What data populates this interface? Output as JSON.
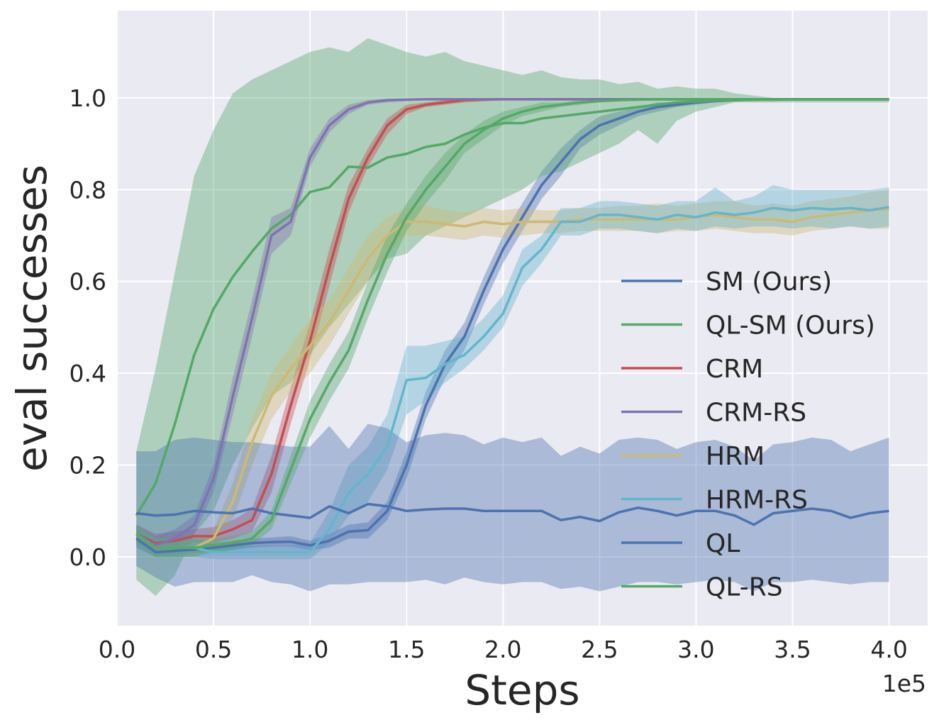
{
  "colors": {
    "background": "#eaeaf2",
    "grid": "#ffffff",
    "blue": "#4c72b0",
    "green": "#55a868",
    "red": "#c44e52",
    "purple": "#8172b2",
    "yellow": "#ccb974",
    "cyan": "#64b5cd"
  },
  "chart_data": {
    "type": "line",
    "title": "",
    "xlabel": "Steps",
    "ylabel": "eval successes",
    "x_offset_label": "1e5",
    "xlim": [
      0,
      4.2
    ],
    "ylim": [
      -0.15,
      1.19
    ],
    "x_ticks": [
      "0.0",
      "0.5",
      "1.0",
      "1.5",
      "2.0",
      "2.5",
      "3.0",
      "3.5",
      "4.0"
    ],
    "y_ticks": [
      "0.0",
      "0.2",
      "0.4",
      "0.6",
      "0.8",
      "1.0"
    ],
    "grid": true,
    "legend_position": "center-right",
    "x": [
      0.1,
      0.2,
      0.3,
      0.4,
      0.5,
      0.6,
      0.7,
      0.8,
      0.9,
      1.0,
      1.1,
      1.2,
      1.3,
      1.4,
      1.5,
      1.6,
      1.7,
      1.8,
      1.9,
      2.0,
      2.1,
      2.2,
      2.3,
      2.4,
      2.5,
      2.6,
      2.7,
      2.8,
      2.9,
      3.0,
      3.1,
      3.2,
      3.3,
      3.4,
      3.5,
      3.6,
      3.7,
      3.8,
      3.9,
      4.0
    ],
    "series": [
      {
        "name": "SM (Ours)",
        "color": "#4c72b0",
        "mean": [
          0.04,
          0.01,
          0.013,
          0.016,
          0.02,
          0.025,
          0.03,
          0.032,
          0.033,
          0.025,
          0.035,
          0.055,
          0.058,
          0.1,
          0.2,
          0.33,
          0.42,
          0.48,
          0.58,
          0.67,
          0.74,
          0.81,
          0.86,
          0.91,
          0.94,
          0.955,
          0.97,
          0.98,
          0.985,
          0.99,
          0.993,
          0.995,
          0.996,
          0.997,
          0.997,
          0.997,
          0.997,
          0.997,
          0.997,
          0.997
        ],
        "lower": [
          0.02,
          0.0,
          0.005,
          0.008,
          0.01,
          0.015,
          0.02,
          0.022,
          0.022,
          0.015,
          0.02,
          0.04,
          0.04,
          0.08,
          0.17,
          0.3,
          0.39,
          0.45,
          0.55,
          0.64,
          0.71,
          0.78,
          0.83,
          0.89,
          0.92,
          0.94,
          0.96,
          0.97,
          0.98,
          0.985,
          0.99,
          0.992,
          0.994,
          0.995,
          0.995,
          0.995,
          0.995,
          0.995,
          0.995,
          0.995
        ],
        "upper": [
          0.06,
          0.02,
          0.022,
          0.025,
          0.03,
          0.035,
          0.04,
          0.042,
          0.045,
          0.035,
          0.05,
          0.07,
          0.075,
          0.12,
          0.23,
          0.36,
          0.45,
          0.51,
          0.61,
          0.7,
          0.77,
          0.84,
          0.89,
          0.93,
          0.96,
          0.97,
          0.98,
          0.99,
          0.99,
          0.995,
          0.997,
          0.998,
          0.998,
          0.999,
          0.999,
          0.999,
          0.999,
          0.999,
          0.999,
          0.999
        ]
      },
      {
        "name": "QL-SM (Ours)",
        "color": "#55a868",
        "mean": [
          0.09,
          0.16,
          0.29,
          0.44,
          0.54,
          0.61,
          0.665,
          0.715,
          0.745,
          0.795,
          0.805,
          0.85,
          0.848,
          0.87,
          0.878,
          0.893,
          0.9,
          0.92,
          0.935,
          0.945,
          0.945,
          0.955,
          0.96,
          0.965,
          0.97,
          0.975,
          0.98,
          0.985,
          0.99,
          0.992,
          0.994,
          0.995,
          0.996,
          0.996,
          0.997,
          0.997,
          0.997,
          0.997,
          0.997,
          0.997
        ],
        "lower": [
          -0.05,
          -0.085,
          -0.04,
          0.05,
          0.1,
          0.2,
          0.28,
          0.35,
          0.38,
          0.44,
          0.5,
          0.55,
          0.6,
          0.65,
          0.66,
          0.7,
          0.72,
          0.74,
          0.76,
          0.78,
          0.8,
          0.83,
          0.84,
          0.86,
          0.88,
          0.9,
          0.93,
          0.9,
          0.95,
          0.97,
          0.98,
          0.99,
          0.99,
          0.99,
          0.99,
          0.99,
          0.99,
          0.99,
          0.99,
          0.99
        ],
        "upper": [
          0.23,
          0.41,
          0.62,
          0.83,
          0.93,
          1.01,
          1.04,
          1.06,
          1.08,
          1.1,
          1.11,
          1.1,
          1.13,
          1.115,
          1.1,
          1.09,
          1.1,
          1.08,
          1.07,
          1.06,
          1.05,
          1.06,
          1.045,
          1.04,
          1.04,
          1.03,
          1.035,
          1.02,
          1.025,
          1.02,
          1.02,
          1.01,
          1.005,
          1.0,
          1.0,
          1.0,
          1.0,
          1.0,
          1.0,
          1.0
        ]
      },
      {
        "name": "CRM",
        "color": "#c44e52",
        "mean": [
          0.05,
          0.03,
          0.035,
          0.045,
          0.045,
          0.06,
          0.08,
          0.18,
          0.33,
          0.47,
          0.63,
          0.78,
          0.87,
          0.94,
          0.975,
          0.985,
          0.99,
          0.995,
          0.996,
          0.997,
          0.997,
          0.997,
          0.997,
          0.997,
          0.997,
          0.997,
          0.997,
          0.997,
          0.997,
          0.997,
          0.997,
          0.997,
          0.997,
          0.997,
          0.997,
          0.997,
          0.997,
          0.997,
          0.997,
          0.997
        ],
        "lower": [
          0.03,
          0.015,
          0.02,
          0.03,
          0.03,
          0.04,
          0.055,
          0.14,
          0.29,
          0.43,
          0.59,
          0.75,
          0.85,
          0.92,
          0.965,
          0.98,
          0.985,
          0.99,
          0.993,
          0.995,
          0.995,
          0.995,
          0.995,
          0.995,
          0.995,
          0.995,
          0.995,
          0.995,
          0.995,
          0.995,
          0.995,
          0.995,
          0.995,
          0.995,
          0.995,
          0.995,
          0.995,
          0.995,
          0.995,
          0.995
        ],
        "upper": [
          0.07,
          0.05,
          0.055,
          0.06,
          0.065,
          0.08,
          0.105,
          0.22,
          0.37,
          0.51,
          0.67,
          0.81,
          0.89,
          0.955,
          0.985,
          0.99,
          0.995,
          0.998,
          0.999,
          0.999,
          0.999,
          0.999,
          0.999,
          0.999,
          0.999,
          0.999,
          0.999,
          0.999,
          0.999,
          0.999,
          0.999,
          0.999,
          0.999,
          0.999,
          0.999,
          0.999,
          0.999,
          0.999,
          0.999,
          0.999
        ]
      },
      {
        "name": "CRM-RS",
        "color": "#8172b2",
        "mean": [
          0.05,
          0.025,
          0.04,
          0.07,
          0.17,
          0.35,
          0.52,
          0.7,
          0.73,
          0.87,
          0.94,
          0.975,
          0.99,
          0.995,
          0.996,
          0.997,
          0.997,
          0.997,
          0.997,
          0.997,
          0.997,
          0.997,
          0.997,
          0.997,
          0.997,
          0.997,
          0.997,
          0.997,
          0.997,
          0.997,
          0.997,
          0.997,
          0.997,
          0.997,
          0.997,
          0.997,
          0.997,
          0.997,
          0.997,
          0.997
        ],
        "lower": [
          0.03,
          0.01,
          0.02,
          0.05,
          0.14,
          0.31,
          0.48,
          0.66,
          0.7,
          0.85,
          0.925,
          0.965,
          0.985,
          0.99,
          0.993,
          0.995,
          0.995,
          0.995,
          0.995,
          0.995,
          0.995,
          0.995,
          0.995,
          0.995,
          0.995,
          0.995,
          0.995,
          0.995,
          0.995,
          0.995,
          0.995,
          0.995,
          0.995,
          0.995,
          0.995,
          0.995,
          0.995,
          0.995,
          0.995,
          0.995
        ],
        "upper": [
          0.07,
          0.045,
          0.06,
          0.09,
          0.2,
          0.39,
          0.56,
          0.74,
          0.76,
          0.89,
          0.955,
          0.985,
          0.995,
          0.998,
          0.999,
          0.999,
          0.999,
          0.999,
          0.999,
          0.999,
          0.999,
          0.999,
          0.999,
          0.999,
          0.999,
          0.999,
          0.999,
          0.999,
          0.999,
          0.999,
          0.999,
          0.999,
          0.999,
          0.999,
          0.999,
          0.999,
          0.999,
          0.999,
          0.999,
          0.999
        ]
      },
      {
        "name": "HRM",
        "color": "#ccb974",
        "mean": [
          0.05,
          0.02,
          0.02,
          0.02,
          0.04,
          0.12,
          0.25,
          0.35,
          0.41,
          0.46,
          0.51,
          0.58,
          0.65,
          0.7,
          0.73,
          0.73,
          0.725,
          0.72,
          0.73,
          0.725,
          0.73,
          0.73,
          0.73,
          0.735,
          0.735,
          0.735,
          0.735,
          0.735,
          0.735,
          0.74,
          0.745,
          0.74,
          0.735,
          0.735,
          0.73,
          0.74,
          0.745,
          0.75,
          0.755,
          0.757
        ],
        "lower": [
          0.03,
          0.0,
          0.0,
          0.0,
          0.02,
          0.08,
          0.2,
          0.3,
          0.36,
          0.4,
          0.46,
          0.53,
          0.6,
          0.66,
          0.7,
          0.7,
          0.695,
          0.69,
          0.7,
          0.695,
          0.7,
          0.705,
          0.705,
          0.71,
          0.71,
          0.71,
          0.71,
          0.705,
          0.71,
          0.71,
          0.715,
          0.71,
          0.705,
          0.705,
          0.7,
          0.71,
          0.715,
          0.72,
          0.715,
          0.715
        ],
        "upper": [
          0.07,
          0.04,
          0.04,
          0.04,
          0.06,
          0.16,
          0.3,
          0.4,
          0.46,
          0.52,
          0.56,
          0.63,
          0.7,
          0.74,
          0.76,
          0.765,
          0.755,
          0.75,
          0.76,
          0.755,
          0.76,
          0.755,
          0.755,
          0.76,
          0.76,
          0.765,
          0.765,
          0.77,
          0.765,
          0.77,
          0.775,
          0.775,
          0.765,
          0.77,
          0.765,
          0.775,
          0.78,
          0.785,
          0.795,
          0.8
        ]
      },
      {
        "name": "HRM-RS",
        "color": "#64b5cd",
        "mean": [
          0.05,
          0.02,
          0.02,
          0.02,
          0.01,
          0.01,
          0.01,
          0.01,
          0.01,
          0.01,
          0.06,
          0.14,
          0.18,
          0.24,
          0.385,
          0.39,
          0.42,
          0.44,
          0.48,
          0.53,
          0.63,
          0.67,
          0.73,
          0.73,
          0.745,
          0.745,
          0.74,
          0.735,
          0.745,
          0.74,
          0.75,
          0.745,
          0.75,
          0.76,
          0.755,
          0.76,
          0.757,
          0.76,
          0.755,
          0.762
        ],
        "lower": [
          0.03,
          0.0,
          0.0,
          0.0,
          -0.005,
          -0.005,
          -0.005,
          -0.005,
          -0.005,
          -0.005,
          0.03,
          0.09,
          0.12,
          0.19,
          0.31,
          0.34,
          0.38,
          0.41,
          0.45,
          0.5,
          0.59,
          0.64,
          0.7,
          0.7,
          0.715,
          0.715,
          0.71,
          0.705,
          0.715,
          0.71,
          0.72,
          0.715,
          0.72,
          0.72,
          0.715,
          0.72,
          0.715,
          0.72,
          0.715,
          0.72
        ],
        "upper": [
          0.07,
          0.04,
          0.04,
          0.04,
          0.025,
          0.025,
          0.025,
          0.025,
          0.025,
          0.03,
          0.1,
          0.2,
          0.24,
          0.31,
          0.46,
          0.46,
          0.47,
          0.48,
          0.52,
          0.57,
          0.67,
          0.7,
          0.76,
          0.76,
          0.775,
          0.775,
          0.77,
          0.765,
          0.775,
          0.775,
          0.805,
          0.775,
          0.785,
          0.81,
          0.8,
          0.8,
          0.8,
          0.8,
          0.8,
          0.805
        ]
      },
      {
        "name": "QL",
        "color": "#4c72b0",
        "mean": [
          0.095,
          0.09,
          0.092,
          0.1,
          0.097,
          0.095,
          0.105,
          0.095,
          0.09,
          0.085,
          0.11,
          0.095,
          0.115,
          0.11,
          0.1,
          0.103,
          0.105,
          0.105,
          0.1,
          0.1,
          0.1,
          0.1,
          0.08,
          0.087,
          0.078,
          0.097,
          0.107,
          0.1,
          0.09,
          0.1,
          0.1,
          0.09,
          0.07,
          0.095,
          0.1,
          0.105,
          0.1,
          0.085,
          0.095,
          0.1
        ],
        "lower": [
          -0.02,
          -0.045,
          -0.065,
          -0.055,
          -0.055,
          -0.055,
          -0.04,
          -0.055,
          -0.06,
          -0.075,
          -0.06,
          -0.06,
          -0.055,
          -0.055,
          -0.055,
          -0.05,
          -0.06,
          -0.045,
          -0.055,
          -0.06,
          -0.055,
          -0.055,
          -0.07,
          -0.065,
          -0.075,
          -0.065,
          -0.055,
          -0.055,
          -0.06,
          -0.055,
          -0.05,
          -0.055,
          -0.075,
          -0.055,
          -0.055,
          -0.05,
          -0.055,
          -0.06,
          -0.055,
          -0.055
        ],
        "upper": [
          0.23,
          0.23,
          0.255,
          0.26,
          0.255,
          0.25,
          0.25,
          0.245,
          0.24,
          0.24,
          0.285,
          0.235,
          0.29,
          0.28,
          0.25,
          0.265,
          0.27,
          0.265,
          0.245,
          0.26,
          0.25,
          0.26,
          0.22,
          0.24,
          0.225,
          0.255,
          0.26,
          0.255,
          0.235,
          0.25,
          0.255,
          0.24,
          0.21,
          0.245,
          0.25,
          0.26,
          0.255,
          0.23,
          0.245,
          0.26
        ]
      },
      {
        "name": "QL-RS",
        "color": "#55a868",
        "mean": [
          0.05,
          0.02,
          0.02,
          0.02,
          0.025,
          0.03,
          0.04,
          0.08,
          0.19,
          0.3,
          0.38,
          0.45,
          0.56,
          0.66,
          0.74,
          0.8,
          0.85,
          0.9,
          0.93,
          0.955,
          0.97,
          0.98,
          0.985,
          0.99,
          0.993,
          0.995,
          0.996,
          0.997,
          0.997,
          0.997,
          0.997,
          0.997,
          0.997,
          0.997,
          0.997,
          0.997,
          0.997,
          0.997,
          0.997,
          0.997
        ],
        "lower": [
          0.03,
          0.0,
          0.0,
          0.0,
          0.01,
          0.015,
          0.025,
          0.06,
          0.16,
          0.26,
          0.34,
          0.41,
          0.52,
          0.62,
          0.71,
          0.77,
          0.82,
          0.88,
          0.91,
          0.94,
          0.96,
          0.97,
          0.98,
          0.985,
          0.99,
          0.992,
          0.994,
          0.995,
          0.995,
          0.995,
          0.995,
          0.995,
          0.995,
          0.995,
          0.995,
          0.995,
          0.995,
          0.995,
          0.995,
          0.995
        ],
        "upper": [
          0.07,
          0.04,
          0.04,
          0.04,
          0.04,
          0.045,
          0.055,
          0.1,
          0.22,
          0.34,
          0.42,
          0.49,
          0.6,
          0.7,
          0.77,
          0.83,
          0.88,
          0.92,
          0.95,
          0.97,
          0.98,
          0.99,
          0.99,
          0.995,
          0.997,
          0.998,
          0.999,
          0.999,
          0.999,
          0.999,
          0.999,
          0.999,
          0.999,
          0.999,
          0.999,
          0.999,
          0.999,
          0.999,
          0.999,
          0.999
        ]
      }
    ]
  }
}
